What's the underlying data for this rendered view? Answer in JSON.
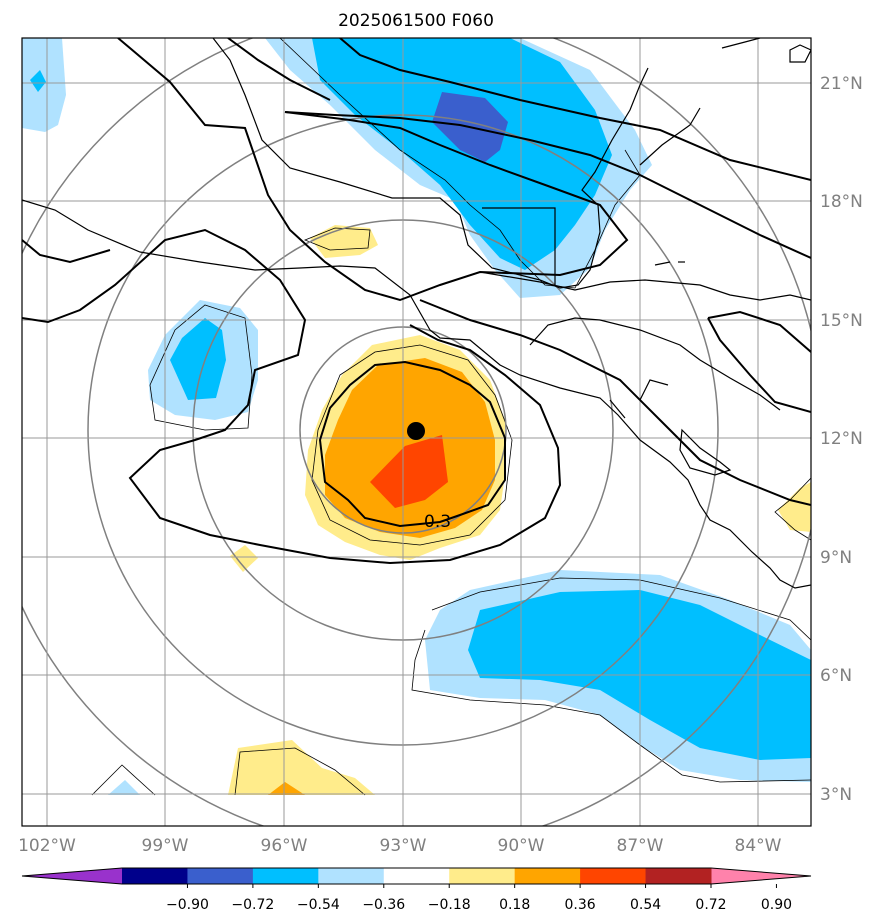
{
  "title": "2025061500 F060",
  "lon_ticks": [
    "102°W",
    "99°W",
    "96°W",
    "93°W",
    "90°W",
    "87°W",
    "84°W"
  ],
  "lat_ticks": [
    "21°N",
    "18°N",
    "15°N",
    "12°N",
    "9°N",
    "6°N",
    "3°N"
  ],
  "colorbar": {
    "colors": [
      "#9932cc",
      "#00008b",
      "#3a5fcd",
      "#00bfff",
      "#b0e2ff",
      "#ffffff",
      "#ffec8b",
      "#ffa500",
      "#ff4500",
      "#b22222",
      "#ff82ab"
    ],
    "ticks": [
      "−0.90",
      "−0.72",
      "−0.54",
      "−0.36",
      "−0.18",
      "0.18",
      "0.36",
      "0.54",
      "0.72",
      "0.90"
    ]
  },
  "contour_label": "0.3",
  "storm_center": {
    "lon": -92.6,
    "lat": 12.2
  }
}
